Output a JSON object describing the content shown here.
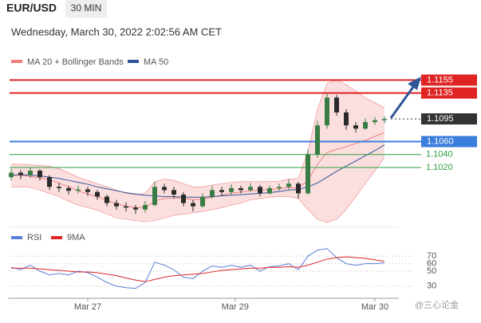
{
  "header": {
    "symbol": "EUR/USD",
    "timeframe": "30 MIN",
    "datetime": "Wednesday, March 30, 2022 2:02:56 AM CET"
  },
  "watermark": "@三心论金",
  "chart_data": [
    {
      "type": "candlestick",
      "legend": [
        {
          "name": "MA 20 + Bollinger Bands",
          "color": "#f08080"
        },
        {
          "name": "MA 50",
          "color": "#2f5597"
        }
      ],
      "ylim": [
        1.093,
        1.1174
      ],
      "up_color": "#3a7d44",
      "down_color": "#2b2b2b",
      "open": [
        1.1005,
        1.1012,
        1.1008,
        1.1015,
        1.1005,
        1.099,
        1.0988,
        1.0984,
        1.0986,
        1.0982,
        1.0975,
        1.0965,
        1.096,
        1.0958,
        1.0955,
        1.0962,
        1.099,
        1.0985,
        1.0978,
        1.0965,
        1.096,
        1.0975,
        1.0985,
        1.0982,
        1.0988,
        1.0985,
        1.099,
        1.098,
        1.0988,
        1.099,
        1.0995,
        1.098,
        1.104,
        1.1085,
        1.1128,
        1.1105,
        1.1085,
        1.108,
        1.109,
        1.1093
      ],
      "high": [
        1.1018,
        1.1016,
        1.102,
        1.1017,
        1.1008,
        1.0996,
        1.0992,
        1.0992,
        1.099,
        1.0985,
        1.0978,
        1.097,
        1.0966,
        1.0962,
        1.0968,
        1.0998,
        1.0995,
        1.099,
        1.0982,
        1.097,
        1.098,
        1.0992,
        1.099,
        1.0994,
        1.0992,
        1.0996,
        1.0993,
        1.0992,
        1.0995,
        1.1002,
        1.0998,
        1.1048,
        1.1092,
        1.1135,
        1.1132,
        1.111,
        1.109,
        1.1096,
        1.1098,
        1.1099
      ],
      "low": [
        1.1,
        1.1002,
        1.1004,
        1.1,
        1.0985,
        1.0982,
        1.0978,
        1.098,
        1.0976,
        1.097,
        1.096,
        1.0955,
        1.0952,
        1.0948,
        1.095,
        1.096,
        1.098,
        1.0972,
        1.096,
        1.0952,
        1.0958,
        1.0972,
        1.0976,
        1.0978,
        1.098,
        1.0982,
        1.0975,
        1.0978,
        1.0984,
        1.0986,
        1.0972,
        1.0978,
        1.1035,
        1.108,
        1.11,
        1.1078,
        1.1074,
        1.1078,
        1.1086,
        1.1088
      ],
      "close": [
        1.1012,
        1.1008,
        1.1015,
        1.1005,
        1.099,
        1.0988,
        1.0984,
        1.0986,
        1.0982,
        1.0975,
        1.0965,
        1.096,
        1.0958,
        1.0955,
        1.0962,
        1.099,
        1.0985,
        1.0978,
        1.0965,
        1.096,
        1.0975,
        1.0985,
        1.0982,
        1.0988,
        1.0985,
        1.099,
        1.098,
        1.0988,
        1.099,
        1.0995,
        1.098,
        1.104,
        1.1085,
        1.1128,
        1.1105,
        1.1085,
        1.108,
        1.109,
        1.1093,
        1.1095
      ],
      "bb_upper": [
        1.1025,
        1.1025,
        1.1024,
        1.1023,
        1.1022,
        1.1018,
        1.1012,
        1.1005,
        1.1,
        1.0995,
        1.099,
        1.0985,
        1.098,
        1.0978,
        1.098,
        1.0998,
        1.1002,
        1.1,
        1.0995,
        1.099,
        1.099,
        1.0993,
        1.0995,
        1.0997,
        1.0998,
        1.0998,
        1.0998,
        1.0998,
        1.0999,
        1.1002,
        1.1003,
        1.1045,
        1.111,
        1.115,
        1.1155,
        1.1148,
        1.1138,
        1.1128,
        1.112,
        1.1112
      ],
      "bb_lower": [
        1.099,
        1.099,
        1.0989,
        1.0985,
        1.098,
        1.0975,
        1.0968,
        1.0962,
        1.0958,
        1.0954,
        1.0948,
        1.0942,
        1.094,
        1.0938,
        1.0936,
        1.0938,
        1.0942,
        1.0946,
        1.0948,
        1.095,
        1.0952,
        1.0955,
        1.0958,
        1.0962,
        1.0965,
        1.097,
        1.0972,
        1.0974,
        1.0975,
        1.0975,
        1.0972,
        1.0955,
        1.094,
        1.0935,
        1.094,
        1.0955,
        1.0975,
        1.0995,
        1.1015,
        1.1035
      ],
      "ma20": [
        1.1008,
        1.1008,
        1.1006,
        1.1004,
        1.1001,
        1.0996,
        1.099,
        1.0984,
        1.0979,
        1.0975,
        1.0969,
        1.0964,
        1.096,
        1.0958,
        1.0958,
        1.0968,
        1.0972,
        1.0973,
        1.0972,
        1.097,
        1.0971,
        1.0974,
        1.0977,
        1.098,
        1.0982,
        1.0984,
        1.0985,
        1.0986,
        1.0987,
        1.0989,
        1.0988,
        1.1,
        1.1025,
        1.1043,
        1.1048,
        1.1052,
        1.1057,
        1.1062,
        1.1068,
        1.1074
      ],
      "ma50": [
        1.1008,
        1.1009,
        1.1008,
        1.1007,
        1.1005,
        1.1003,
        1.1,
        1.0997,
        1.0994,
        1.099,
        1.0987,
        1.0984,
        1.0981,
        1.0979,
        1.0977,
        1.0976,
        1.0975,
        1.0975,
        1.0974,
        1.0974,
        1.0974,
        1.0975,
        1.0976,
        1.0977,
        1.0978,
        1.0979,
        1.098,
        1.0981,
        1.0983,
        1.0985,
        1.0986,
        1.099,
        1.0996,
        1.1005,
        1.1014,
        1.1022,
        1.103,
        1.1038,
        1.1046,
        1.1055
      ],
      "levels": [
        {
          "value": 1.1155,
          "label": "1.1155",
          "color": "#e02424",
          "style": "solid"
        },
        {
          "value": 1.1135,
          "label": "1.1135",
          "color": "#e02424",
          "style": "solid"
        },
        {
          "value": 1.1095,
          "label": "1.1095",
          "color": "#333333",
          "style": "dotted"
        },
        {
          "value": 1.106,
          "label": "1.1060",
          "color": "#3b7ddd",
          "style": "solid"
        },
        {
          "value": 1.104,
          "label": "1.1040",
          "color": "#2e9e3e",
          "style": "thin"
        },
        {
          "value": 1.102,
          "label": "1.1020",
          "color": "#2e9e3e",
          "style": "thin"
        }
      ]
    },
    {
      "type": "line",
      "ylim": [
        16,
        84
      ],
      "yticks": [
        70,
        60,
        50,
        30
      ],
      "xticks": [
        {
          "value": 8,
          "label": "Mar 27"
        },
        {
          "value": 23.4,
          "label": "Mar 29"
        },
        {
          "value": 38,
          "label": "Mar 30"
        }
      ],
      "series": [
        {
          "name": "RSI",
          "color": "#5b7fdb",
          "values": [
            55,
            52,
            58,
            50,
            45,
            47,
            45,
            50,
            48,
            42,
            35,
            30,
            28,
            27,
            35,
            62,
            58,
            52,
            42,
            40,
            50,
            57,
            55,
            58,
            55,
            58,
            50,
            56,
            57,
            60,
            52,
            70,
            78,
            80,
            68,
            60,
            58,
            60,
            60,
            61
          ]
        },
        {
          "name": "9MA",
          "color": "#e02424",
          "values": [
            54,
            54,
            54,
            53,
            52,
            51,
            50,
            49,
            49,
            48,
            46,
            44,
            41,
            38,
            36,
            39,
            42,
            44,
            45,
            46,
            47,
            49,
            51,
            52,
            53,
            54,
            54,
            55,
            55,
            56,
            55,
            58,
            62,
            66,
            68,
            69,
            68,
            67,
            65,
            63
          ]
        }
      ]
    }
  ]
}
